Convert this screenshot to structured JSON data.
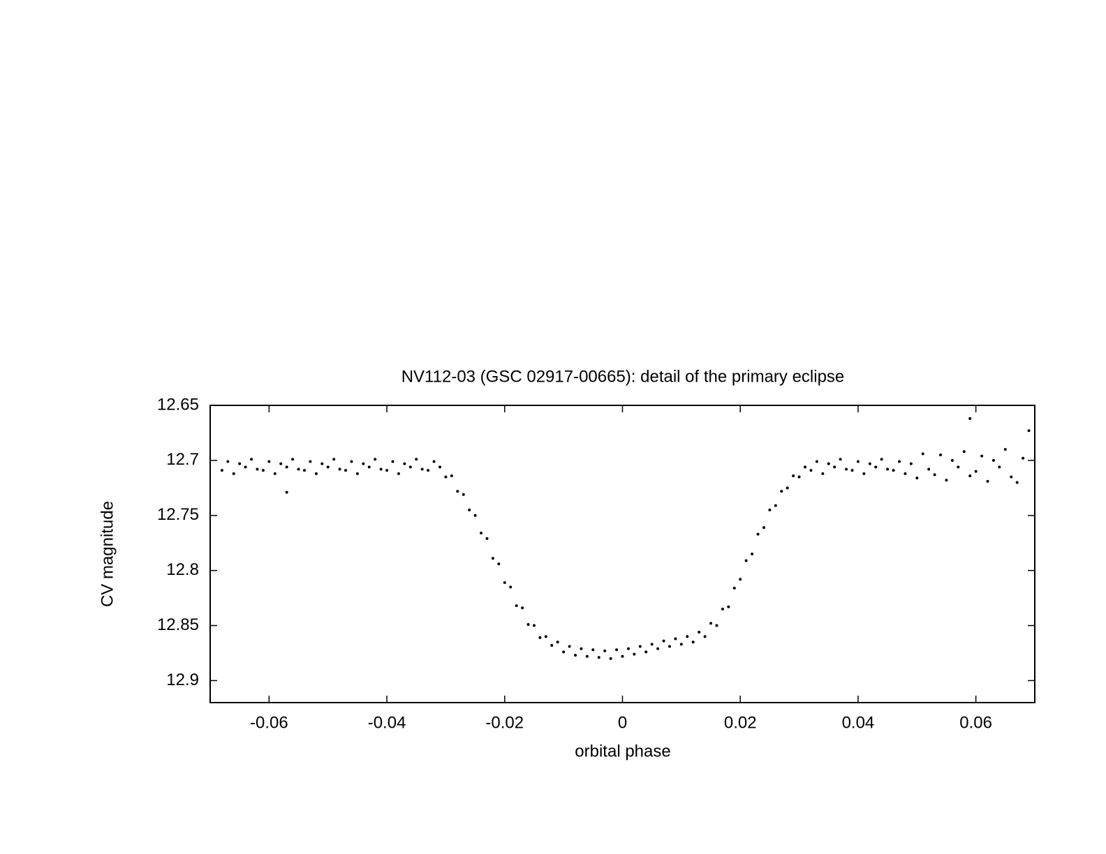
{
  "chart_data": {
    "type": "scatter",
    "title": "NV112-03 (GSC 02917-00665): detail of the primary eclipse",
    "x_label": "orbital phase",
    "y_label": "CV magnitude",
    "xlim": [
      -0.07,
      0.07
    ],
    "ylim": [
      12.65,
      12.92
    ],
    "y_reversed": true,
    "xticks": [
      -0.06,
      -0.04,
      -0.02,
      0,
      0.02,
      0.04,
      0.06
    ],
    "yticks": [
      12.65,
      12.7,
      12.75,
      12.8,
      12.85,
      12.9
    ],
    "grid": false,
    "color": "#000000",
    "x": [
      -0.068,
      -0.067,
      -0.066,
      -0.065,
      -0.064,
      -0.063,
      -0.062,
      -0.061,
      -0.06,
      -0.059,
      -0.058,
      -0.057,
      -0.056,
      -0.055,
      -0.054,
      -0.053,
      -0.052,
      -0.051,
      -0.05,
      -0.049,
      -0.048,
      -0.047,
      -0.046,
      -0.045,
      -0.044,
      -0.043,
      -0.042,
      -0.041,
      -0.04,
      -0.039,
      -0.038,
      -0.037,
      -0.036,
      -0.035,
      -0.034,
      -0.033,
      -0.032,
      -0.031,
      -0.03,
      -0.029,
      -0.028,
      -0.027,
      -0.026,
      -0.025,
      -0.024,
      -0.023,
      -0.022,
      -0.021,
      -0.02,
      -0.019,
      -0.018,
      -0.017,
      -0.016,
      -0.015,
      -0.014,
      -0.013,
      -0.012,
      -0.011,
      -0.01,
      -0.009,
      -0.008,
      -0.007,
      -0.006,
      -0.005,
      -0.004,
      -0.003,
      -0.002,
      -0.001,
      0,
      0.001,
      0.002,
      0.003,
      0.004,
      0.005,
      0.006,
      0.007,
      0.008,
      0.009,
      0.01,
      0.011,
      0.012,
      0.013,
      0.014,
      0.015,
      0.016,
      0.017,
      0.018,
      0.019,
      0.02,
      0.021,
      0.022,
      0.023,
      0.024,
      0.025,
      0.026,
      0.027,
      0.028,
      0.029,
      0.03,
      0.031,
      0.032,
      0.033,
      0.034,
      0.035,
      0.036,
      0.037,
      0.038,
      0.039,
      0.04,
      0.041,
      0.042,
      0.043,
      0.044,
      0.045,
      0.046,
      0.047,
      0.048,
      0.049,
      0.05,
      0.051,
      0.052,
      0.053,
      0.054,
      0.055,
      0.056,
      0.057,
      0.058,
      0.059,
      0.06,
      0.061,
      0.062,
      0.063,
      0.064,
      0.065,
      0.066,
      0.067,
      0.068,
      0.059,
      0.069,
      -0.057
    ],
    "values": [
      12.709,
      12.701,
      12.712,
      12.703,
      12.706,
      12.699,
      12.708,
      12.709,
      12.701,
      12.712,
      12.703,
      12.706,
      12.699,
      12.708,
      12.709,
      12.701,
      12.712,
      12.703,
      12.706,
      12.699,
      12.708,
      12.709,
      12.701,
      12.712,
      12.703,
      12.706,
      12.699,
      12.708,
      12.709,
      12.701,
      12.712,
      12.703,
      12.706,
      12.699,
      12.708,
      12.709,
      12.701,
      12.706,
      12.715,
      12.714,
      12.728,
      12.731,
      12.745,
      12.75,
      12.766,
      12.771,
      12.789,
      12.794,
      12.811,
      12.815,
      12.832,
      12.834,
      12.849,
      12.85,
      12.861,
      12.86,
      12.868,
      12.865,
      12.874,
      12.869,
      12.877,
      12.871,
      12.878,
      12.872,
      12.879,
      12.873,
      12.88,
      12.872,
      12.878,
      12.871,
      12.876,
      12.869,
      12.874,
      12.867,
      12.871,
      12.864,
      12.869,
      12.862,
      12.867,
      12.86,
      12.865,
      12.856,
      12.86,
      12.848,
      12.85,
      12.835,
      12.833,
      12.816,
      12.808,
      12.791,
      12.785,
      12.767,
      12.761,
      12.745,
      12.741,
      12.728,
      12.725,
      12.714,
      12.715,
      12.706,
      12.709,
      12.701,
      12.712,
      12.703,
      12.706,
      12.699,
      12.708,
      12.709,
      12.701,
      12.712,
      12.703,
      12.706,
      12.699,
      12.708,
      12.709,
      12.701,
      12.712,
      12.703,
      12.716,
      12.694,
      12.708,
      12.713,
      12.695,
      12.718,
      12.7,
      12.706,
      12.692,
      12.714,
      12.71,
      12.696,
      12.719,
      12.7,
      12.706,
      12.69,
      12.715,
      12.72,
      12.698,
      12.662,
      12.673,
      12.729
    ]
  }
}
